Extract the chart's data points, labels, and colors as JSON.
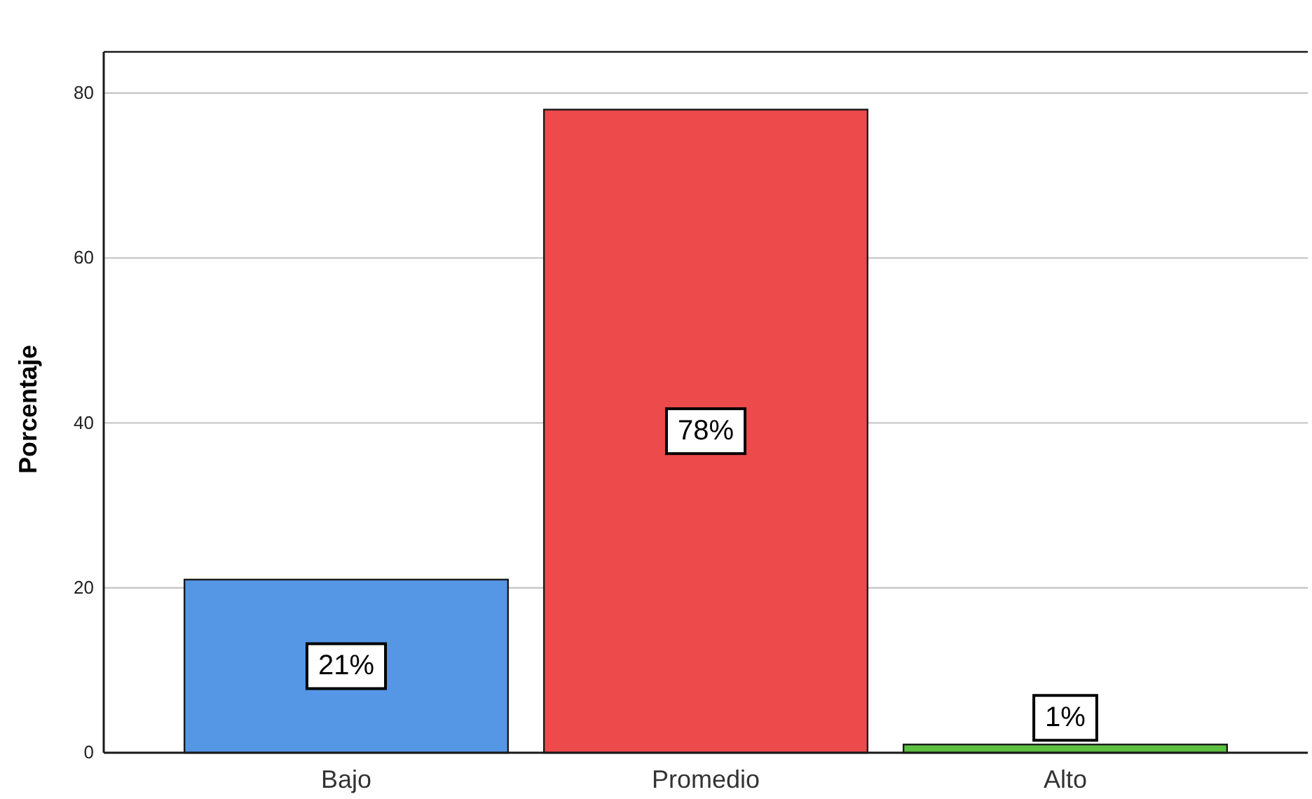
{
  "chart_data": {
    "type": "bar",
    "categories": [
      "Bajo",
      "Promedio",
      "Alto"
    ],
    "values": [
      21,
      78,
      1
    ],
    "colors": [
      "#5596e5",
      "#ed4a4b",
      "#5cc040"
    ],
    "value_labels": [
      "21%",
      "78%",
      "1%"
    ],
    "ylabel": "Porcentaje",
    "ylim": [
      0,
      85
    ],
    "yticks": [
      0,
      20,
      40,
      60,
      80
    ],
    "grid": "y"
  }
}
